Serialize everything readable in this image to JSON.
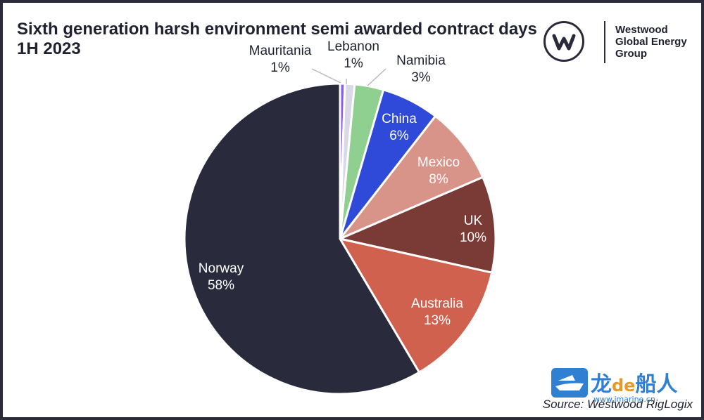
{
  "title_lines": [
    "Sixth generation harsh environment semi awarded contract days",
    "1H 2023"
  ],
  "logo": {
    "lines": [
      "Westwood",
      "Global Energy",
      "Group"
    ],
    "icon": "westwood-w-icon"
  },
  "source": "Source: Westwood RigLogix",
  "watermark": {
    "text_a": "龙",
    "text_de": "de",
    "text_b": "船人",
    "url": "www.imarine.cn"
  },
  "chart_data": {
    "type": "pie",
    "title": "Sixth generation harsh environment semi awarded contract days 1H 2023",
    "slices": [
      {
        "label": "Mauritania",
        "percent_label": "1%",
        "value": 0.5,
        "color": "#8b5cf6"
      },
      {
        "label": "Lebanon",
        "percent_label": "1%",
        "value": 1.0,
        "color": "#d8d8e6"
      },
      {
        "label": "Namibia",
        "percent_label": "3%",
        "value": 3.0,
        "color": "#8fcf8f"
      },
      {
        "label": "China",
        "percent_label": "6%",
        "value": 6.0,
        "color": "#2f4ad8"
      },
      {
        "label": "Mexico",
        "percent_label": "8%",
        "value": 8.0,
        "color": "#d9948a"
      },
      {
        "label": "UK",
        "percent_label": "10%",
        "value": 10.0,
        "color": "#7a3a35"
      },
      {
        "label": "Australia",
        "percent_label": "13%",
        "value": 13.0,
        "color": "#d0614f"
      },
      {
        "label": "Norway",
        "percent_label": "58%",
        "value": 58.5,
        "color": "#2a2a3d"
      }
    ],
    "start_angle_deg": 0,
    "direction": "clockwise"
  }
}
